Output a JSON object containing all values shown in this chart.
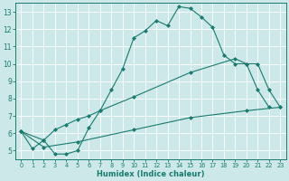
{
  "line1_x": [
    0,
    1,
    2,
    3,
    4,
    5,
    6,
    7,
    8,
    9,
    10,
    11,
    12,
    13,
    14,
    15,
    16,
    17,
    18,
    19,
    20,
    21,
    22
  ],
  "line1_y": [
    6.1,
    5.1,
    5.6,
    4.8,
    4.8,
    5.0,
    6.3,
    7.3,
    8.5,
    9.7,
    11.5,
    11.9,
    12.5,
    12.2,
    13.3,
    13.2,
    12.7,
    12.1,
    10.5,
    10.0,
    10.0,
    8.5,
    7.5
  ],
  "line2_x": [
    0,
    2,
    3,
    4,
    5,
    6,
    7,
    10,
    15,
    19,
    20,
    21,
    22,
    23
  ],
  "line2_y": [
    6.1,
    5.6,
    6.2,
    6.5,
    6.8,
    7.0,
    7.3,
    8.1,
    9.5,
    10.3,
    10.0,
    10.0,
    8.5,
    7.5
  ],
  "line3_x": [
    0,
    2,
    5,
    10,
    15,
    20,
    23
  ],
  "line3_y": [
    6.1,
    5.2,
    5.5,
    6.2,
    6.9,
    7.3,
    7.5
  ],
  "line_color": "#1a7a6e",
  "bg_color": "#cce8e8",
  "grid_color": "#b8d8d8",
  "xlabel": "Humidex (Indice chaleur)",
  "xlim": [
    -0.5,
    23.5
  ],
  "ylim": [
    4.5,
    13.5
  ],
  "yticks": [
    5,
    6,
    7,
    8,
    9,
    10,
    11,
    12,
    13
  ],
  "xticks": [
    0,
    1,
    2,
    3,
    4,
    5,
    6,
    7,
    8,
    9,
    10,
    11,
    12,
    13,
    14,
    15,
    16,
    17,
    18,
    19,
    20,
    21,
    22,
    23
  ],
  "figwidth": 3.2,
  "figheight": 2.0,
  "dpi": 100
}
